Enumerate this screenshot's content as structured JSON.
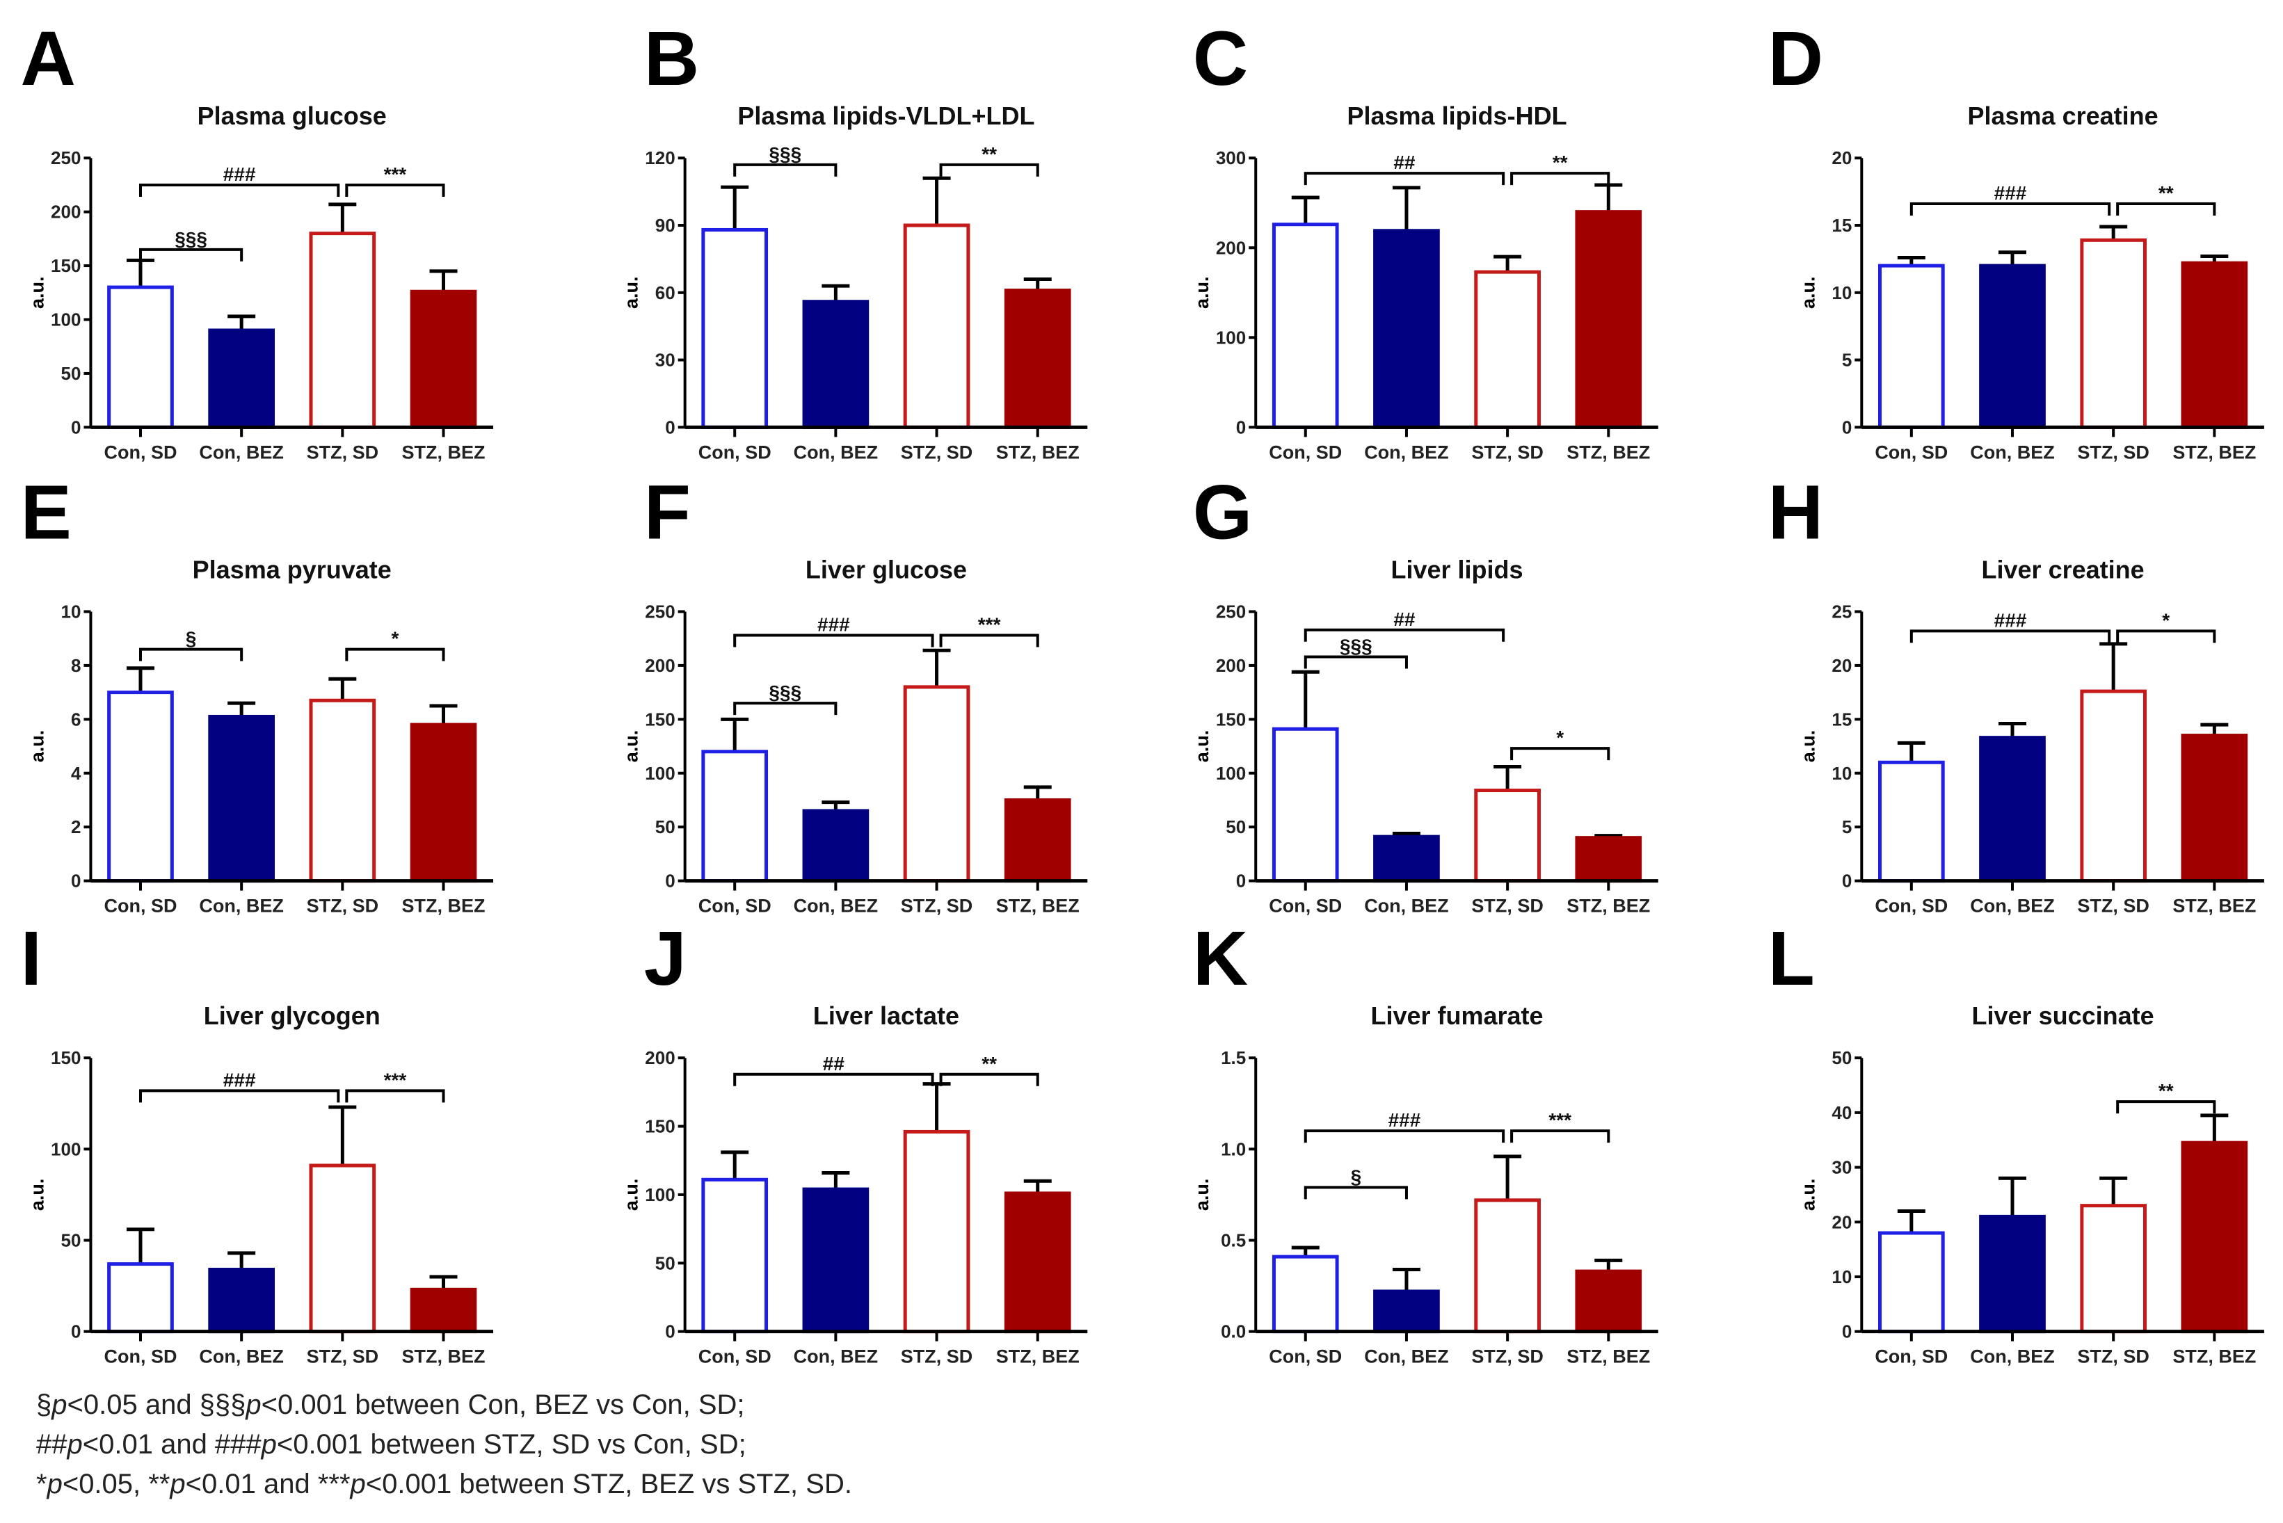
{
  "groups": [
    "Con, SD",
    "Con, BEZ",
    "STZ, SD",
    "STZ, BEZ"
  ],
  "colors": {
    "con_sd": "#1f1fe6",
    "con_bez": "#000080",
    "stz_sd": "#c41a1a",
    "stz_bez": "#a00000",
    "axis": "#000000"
  },
  "ylabel": "a.u.",
  "chart_data": [
    {
      "type": "bar",
      "panel": "A",
      "title": "Plasma glucose",
      "ylim": [
        0,
        250
      ],
      "yticks": [
        "0",
        "50",
        "100",
        "150",
        "200",
        "250"
      ],
      "tickvals": [
        0,
        50,
        100,
        150,
        200,
        250
      ],
      "values": [
        130,
        90,
        180,
        126
      ],
      "err": [
        25,
        13,
        27,
        19
      ],
      "sig": [
        {
          "from": 0,
          "to": 2,
          "y": 225,
          "label": "###"
        },
        {
          "from": 2,
          "to": 3,
          "y": 225,
          "label": "***"
        },
        {
          "from": 0,
          "to": 1,
          "y": 165,
          "label": "§§§"
        }
      ]
    },
    {
      "type": "bar",
      "panel": "B",
      "title": "Plasma lipids-VLDL+LDL",
      "ylim": [
        0,
        120
      ],
      "yticks": [
        "0",
        "30",
        "60",
        "90",
        "120"
      ],
      "tickvals": [
        0,
        30,
        60,
        90,
        120
      ],
      "values": [
        88,
        56,
        90,
        61
      ],
      "err": [
        19,
        7,
        21,
        5
      ],
      "sig": [
        {
          "from": 0,
          "to": 1,
          "y": 117,
          "label": "§§§"
        },
        {
          "from": 2,
          "to": 3,
          "y": 117,
          "label": "**"
        }
      ]
    },
    {
      "type": "bar",
      "panel": "C",
      "title": "Plasma lipids-HDL",
      "ylim": [
        0,
        300
      ],
      "yticks": [
        "0",
        "100",
        "200",
        "300"
      ],
      "tickvals": [
        0,
        100,
        200,
        300
      ],
      "values": [
        226,
        219,
        173,
        240
      ],
      "err": [
        30,
        48,
        17,
        30
      ],
      "sig": [
        {
          "from": 0,
          "to": 2,
          "y": 283,
          "label": "##"
        },
        {
          "from": 2,
          "to": 3,
          "y": 283,
          "label": "**"
        }
      ]
    },
    {
      "type": "bar",
      "panel": "D",
      "title": "Plasma creatine",
      "ylim": [
        0,
        20
      ],
      "yticks": [
        "0",
        "5",
        "10",
        "15",
        "20"
      ],
      "tickvals": [
        0,
        5,
        10,
        15,
        20
      ],
      "values": [
        12,
        12,
        13.9,
        12.2
      ],
      "err": [
        0.6,
        1,
        1,
        0.5
      ],
      "sig": [
        {
          "from": 0,
          "to": 2,
          "y": 16.6,
          "label": "###"
        },
        {
          "from": 2,
          "to": 3,
          "y": 16.6,
          "label": "**"
        }
      ]
    },
    {
      "type": "bar",
      "panel": "E",
      "title": "Plasma pyruvate",
      "ylim": [
        0,
        10
      ],
      "yticks": [
        "0",
        "2",
        "4",
        "6",
        "8",
        "10"
      ],
      "tickvals": [
        0,
        2,
        4,
        6,
        8,
        10
      ],
      "values": [
        7.0,
        6.1,
        6.7,
        5.8
      ],
      "err": [
        0.9,
        0.5,
        0.8,
        0.7
      ],
      "sig": [
        {
          "from": 0,
          "to": 1,
          "y": 8.6,
          "label": "§"
        },
        {
          "from": 2,
          "to": 3,
          "y": 8.6,
          "label": "*"
        }
      ]
    },
    {
      "type": "bar",
      "panel": "F",
      "title": "Liver glucose",
      "ylim": [
        0,
        250
      ],
      "yticks": [
        "0",
        "50",
        "100",
        "150",
        "200",
        "250"
      ],
      "tickvals": [
        0,
        50,
        100,
        150,
        200,
        250
      ],
      "values": [
        120,
        65,
        180,
        75
      ],
      "err": [
        30,
        8,
        34,
        12
      ],
      "sig": [
        {
          "from": 0,
          "to": 2,
          "y": 228,
          "label": "###"
        },
        {
          "from": 2,
          "to": 3,
          "y": 228,
          "label": "***"
        },
        {
          "from": 0,
          "to": 1,
          "y": 165,
          "label": "§§§"
        }
      ]
    },
    {
      "type": "bar",
      "panel": "G",
      "title": "Liver lipids",
      "ylim": [
        0,
        250
      ],
      "yticks": [
        "0",
        "50",
        "100",
        "150",
        "200",
        "250"
      ],
      "tickvals": [
        0,
        50,
        100,
        150,
        200,
        250
      ],
      "values": [
        141,
        41,
        84,
        40
      ],
      "err": [
        53,
        3,
        22,
        2
      ],
      "sig": [
        {
          "from": 0,
          "to": 2,
          "y": 233,
          "label": "##"
        },
        {
          "from": 0,
          "to": 1,
          "y": 208,
          "label": "§§§"
        },
        {
          "from": 2,
          "to": 3,
          "y": 123,
          "label": "*"
        }
      ]
    },
    {
      "type": "bar",
      "panel": "H",
      "title": "Liver creatine",
      "ylim": [
        0,
        25
      ],
      "yticks": [
        "0",
        "5",
        "10",
        "15",
        "20",
        "25"
      ],
      "tickvals": [
        0,
        5,
        10,
        15,
        20,
        25
      ],
      "values": [
        11,
        13.3,
        17.6,
        13.5
      ],
      "err": [
        1.8,
        1.3,
        4.4,
        1
      ],
      "sig": [
        {
          "from": 0,
          "to": 2,
          "y": 23.2,
          "label": "###"
        },
        {
          "from": 2,
          "to": 3,
          "y": 23.2,
          "label": "*"
        }
      ]
    },
    {
      "type": "bar",
      "panel": "I",
      "title": "Liver glycogen",
      "ylim": [
        0,
        150
      ],
      "yticks": [
        "0",
        "50",
        "100",
        "150"
      ],
      "tickvals": [
        0,
        50,
        100,
        150
      ],
      "values": [
        37,
        34,
        91,
        23
      ],
      "err": [
        19,
        9,
        32,
        7
      ],
      "sig": [
        {
          "from": 0,
          "to": 2,
          "y": 132,
          "label": "###"
        },
        {
          "from": 2,
          "to": 3,
          "y": 132,
          "label": "***"
        }
      ]
    },
    {
      "type": "bar",
      "panel": "J",
      "title": "Liver lactate",
      "ylim": [
        0,
        200
      ],
      "yticks": [
        "0",
        "50",
        "100",
        "150",
        "200"
      ],
      "tickvals": [
        0,
        50,
        100,
        150,
        200
      ],
      "values": [
        111,
        104,
        146,
        101
      ],
      "err": [
        20,
        12,
        35,
        9
      ],
      "sig": [
        {
          "from": 0,
          "to": 2,
          "y": 188,
          "label": "##"
        },
        {
          "from": 2,
          "to": 3,
          "y": 188,
          "label": "**"
        }
      ]
    },
    {
      "type": "bar",
      "panel": "K",
      "title": "Liver fumarate",
      "ylim": [
        0,
        1.5
      ],
      "yticks": [
        "0.0",
        "0.5",
        "1.0",
        "1.5"
      ],
      "tickvals": [
        0,
        0.5,
        1,
        1.5
      ],
      "values": [
        0.41,
        0.22,
        0.72,
        0.33
      ],
      "err": [
        0.05,
        0.12,
        0.24,
        0.06
      ],
      "sig": [
        {
          "from": 0,
          "to": 2,
          "y": 1.1,
          "label": "###"
        },
        {
          "from": 2,
          "to": 3,
          "y": 1.1,
          "label": "***"
        },
        {
          "from": 0,
          "to": 1,
          "y": 0.79,
          "label": "§"
        }
      ]
    },
    {
      "type": "bar",
      "panel": "L",
      "title": "Liver succinate",
      "ylim": [
        0,
        50
      ],
      "yticks": [
        "0",
        "10",
        "20",
        "30",
        "40",
        "50"
      ],
      "tickvals": [
        0,
        10,
        20,
        30,
        40,
        50
      ],
      "values": [
        18,
        21,
        23,
        34.5
      ],
      "err": [
        4,
        7,
        5,
        5
      ],
      "sig": [
        {
          "from": 2,
          "to": 3,
          "y": 42,
          "label": "**"
        }
      ]
    }
  ],
  "footnote": [
    [
      {
        "t": "§"
      },
      {
        "t": "p",
        "i": true
      },
      {
        "t": "<0.05 and §§§"
      },
      {
        "t": "p",
        "i": true
      },
      {
        "t": "<0.001 between Con, BEZ vs Con, SD;"
      }
    ],
    [
      {
        "t": "##"
      },
      {
        "t": "p",
        "i": true
      },
      {
        "t": "<0.01 and ###"
      },
      {
        "t": "p",
        "i": true
      },
      {
        "t": "<0.001 between STZ, SD vs Con, SD;"
      }
    ],
    [
      {
        "t": "*"
      },
      {
        "t": "p",
        "i": true
      },
      {
        "t": "<0.05, **"
      },
      {
        "t": "p",
        "i": true
      },
      {
        "t": "<0.01 and ***"
      },
      {
        "t": "p",
        "i": true
      },
      {
        "t": "<0.001 between STZ, BEZ vs STZ, SD."
      }
    ]
  ]
}
